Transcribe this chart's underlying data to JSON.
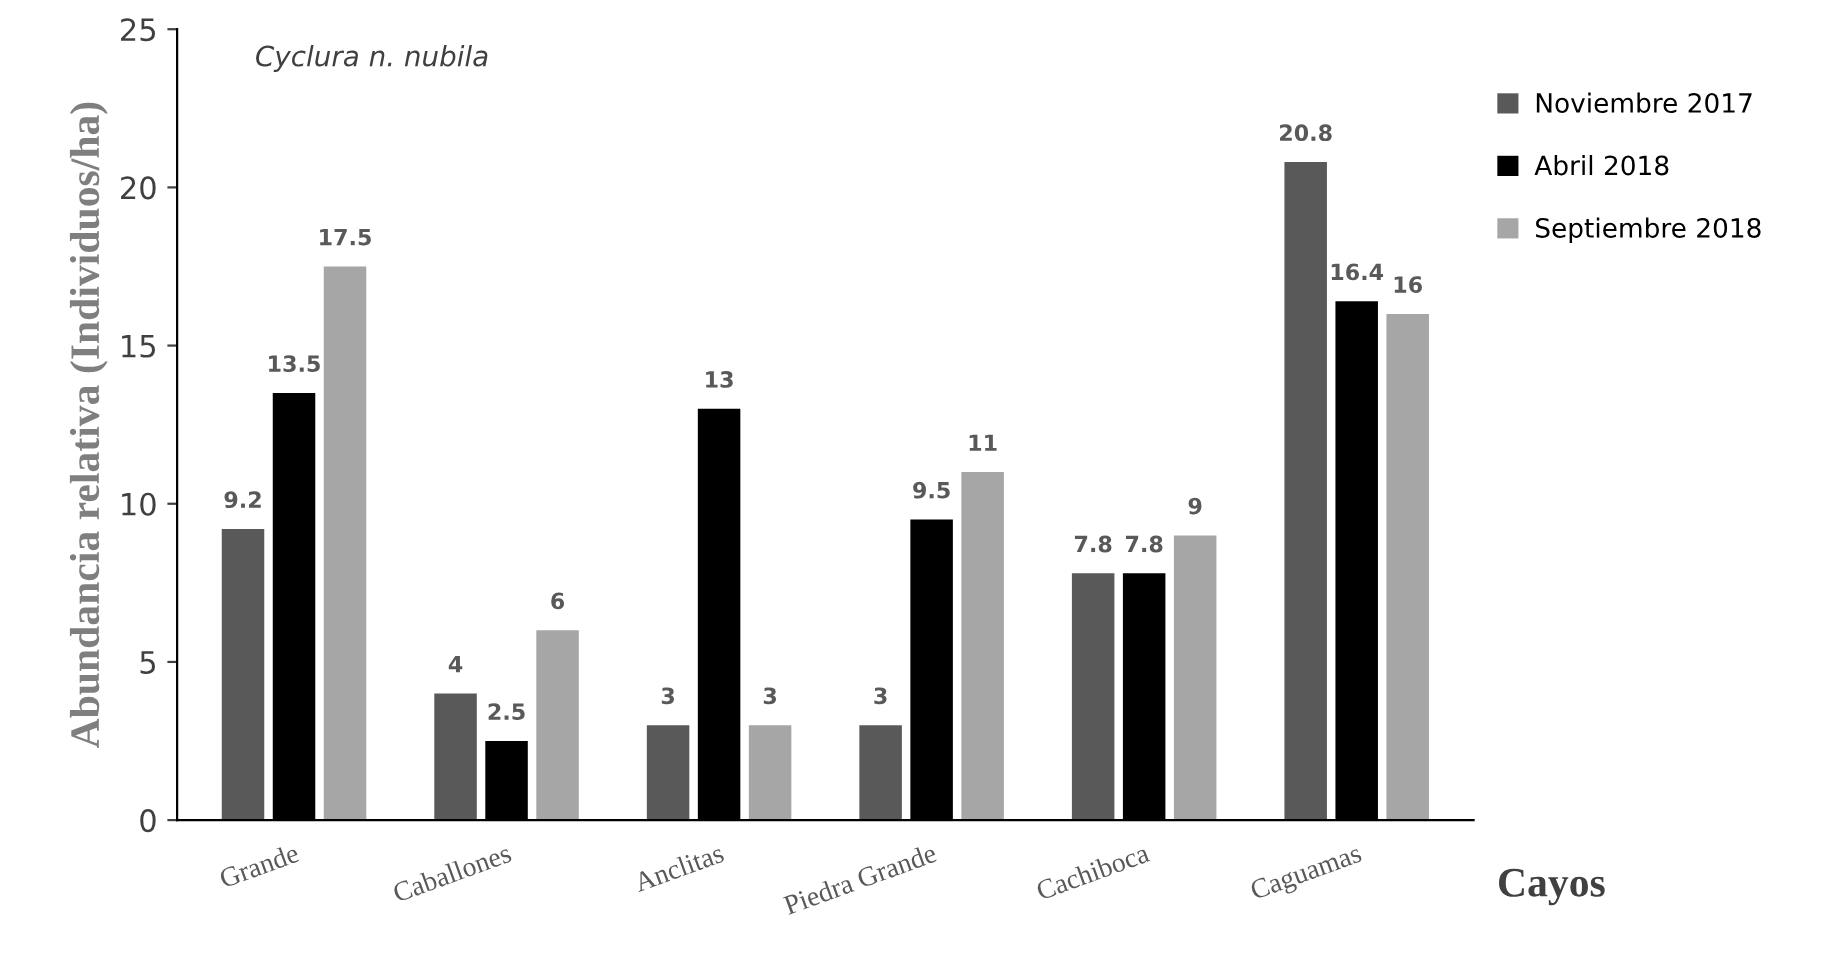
{
  "chart_data": {
    "type": "bar",
    "xlabel": "Cayos",
    "ylabel": "Abundancia relativa (Individuos/ha)",
    "annotations": [
      "Cyclura n. nubila"
    ],
    "categories": [
      "Grande",
      "Caballones",
      "Anclitas",
      "Piedra Grande",
      "Cachiboca",
      "Caguamas"
    ],
    "series": [
      {
        "name": "Noviembre 2017",
        "color": "#595959",
        "values": [
          9.2,
          4,
          3,
          3,
          7.8,
          20.8
        ]
      },
      {
        "name": "Abril 2018",
        "color": "#000000",
        "values": [
          13.5,
          2.5,
          13,
          9.5,
          7.8,
          16.4
        ]
      },
      {
        "name": "Septiembre 2018",
        "color": "#a6a6a6",
        "values": [
          17.5,
          6,
          3,
          11,
          9,
          16
        ]
      }
    ],
    "ylim": [
      0,
      25
    ],
    "yticks": [
      0,
      5,
      10,
      15,
      20,
      25
    ],
    "grid": false,
    "legend": "right",
    "data_labels": true
  }
}
